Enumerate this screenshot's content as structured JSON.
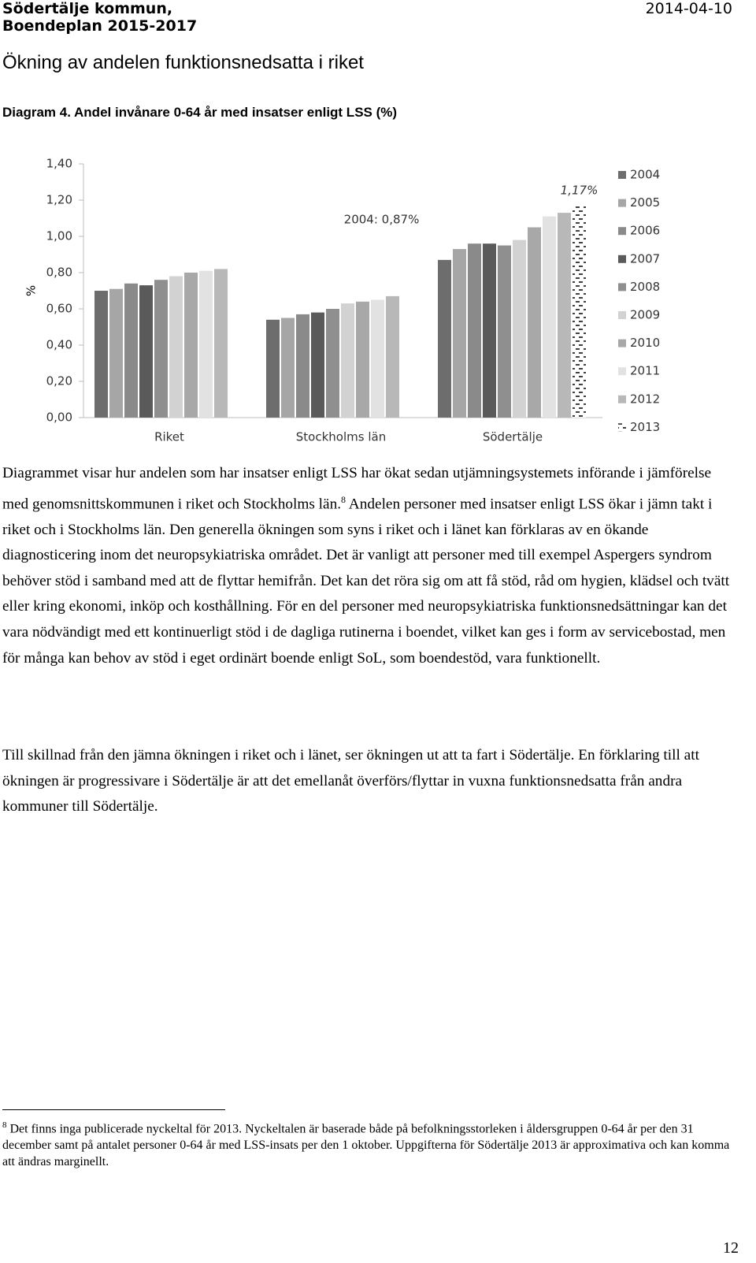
{
  "header": {
    "organization": "Södertälje kommun,",
    "document": "Boendeplan 2015-2017",
    "date": "2014-04-10"
  },
  "section_title": "Ökning av andelen funktionsnedsatta i riket",
  "chart_data": {
    "type": "bar",
    "title": "Diagram 4. Andel invånare 0-64 år med insatser enligt LSS (%)",
    "y_label": "%",
    "categories": [
      "Riket",
      "Stockholms län",
      "Södertälje"
    ],
    "series": [
      {
        "name": "2004",
        "color": "#6d6d6d",
        "values": [
          0.7,
          0.54,
          0.87
        ]
      },
      {
        "name": "2005",
        "color": "#a6a6a6",
        "values": [
          0.71,
          0.55,
          0.93
        ]
      },
      {
        "name": "2006",
        "color": "#8a8a8a",
        "values": [
          0.74,
          0.57,
          0.96
        ]
      },
      {
        "name": "2007",
        "color": "#5a5a5a",
        "values": [
          0.73,
          0.58,
          0.96
        ]
      },
      {
        "name": "2008",
        "color": "#8f8f8f",
        "values": [
          0.76,
          0.6,
          0.95
        ]
      },
      {
        "name": "2009",
        "color": "#d2d2d2",
        "values": [
          0.78,
          0.63,
          0.98
        ]
      },
      {
        "name": "2010",
        "color": "#a8a8a8",
        "values": [
          0.8,
          0.64,
          1.05
        ]
      },
      {
        "name": "2011",
        "color": "#e2e2e2",
        "values": [
          0.81,
          0.65,
          1.11
        ]
      },
      {
        "name": "2012",
        "color": "#b8b8b8",
        "values": [
          0.82,
          0.67,
          1.13
        ]
      },
      {
        "name": "2013",
        "color": "#ffffff",
        "dashed": true,
        "values": [
          null,
          null,
          1.17
        ]
      }
    ],
    "annotations": [
      "2004: 0,87%",
      "1,17%"
    ],
    "ylim": [
      0,
      1.4
    ],
    "yticks": [
      {
        "value": 0,
        "label": "0,00"
      },
      {
        "value": 0.2,
        "label": "0,20"
      },
      {
        "value": 0.4,
        "label": "0,40"
      },
      {
        "value": 0.6,
        "label": "0,60"
      },
      {
        "value": 0.8,
        "label": "0,80"
      },
      {
        "value": 1.0,
        "label": "1,00"
      },
      {
        "value": 1.2,
        "label": "1,20"
      },
      {
        "value": 1.4,
        "label": "1,40"
      }
    ],
    "grid": false,
    "legend": "right"
  },
  "body": {
    "paragraph_1": {
      "text": "Diagrammet visar hur andelen som har insatser enligt LSS har ökat sedan utjämningsystemets införande i jämförelse med genomsnittskommunen i riket och Stockholms län.",
      "ref": "8",
      "continuation": " Andelen personer med insatser enligt LSS ökar i jämn takt i riket och i Stockholms län. Den generella ökningen som syns i riket och i länet kan förklaras av en ökande diagnosticering inom det neuropsykiatriska området. Det är vanligt att personer med till exempel Aspergers syndrom behöver stöd i samband med att de flyttar hemifrån. Det kan det röra sig om att få stöd, råd om hygien, klädsel och tvätt eller kring ekonomi, inköp och kosthållning. För en del personer med neuropsykiatriska funktionsnedsättningar kan det vara nödvändigt med ett kontinuerligt stöd i de dagliga rutinerna i boendet, vilket kan ges i form av servicebostad, men för många kan behov av stöd i eget ordinärt boende enligt SoL, som boendestöd, vara funktionellt."
    },
    "paragraph_2": "Till skillnad från den jämna ökningen i riket och i länet, ser ökningen ut att ta fart i Södertälje. En förklaring till att ökningen är progressivare i Södertälje är att det emellanåt överförs/flyttar in vuxna funktionsnedsatta från andra kommuner till Södertälje."
  },
  "footnote": {
    "number": "8",
    "text": "Det finns inga publicerade nyckeltal för 2013. Nyckeltalen är baserade både på befolkningsstorleken i åldersgruppen 0-64 år per den 31 december samt på antalet personer 0-64 år med LSS-insats per den 1 oktober. Uppgifterna för Södertälje 2013 är approximativa och kan komma att ändras marginellt."
  },
  "page_number": "12"
}
